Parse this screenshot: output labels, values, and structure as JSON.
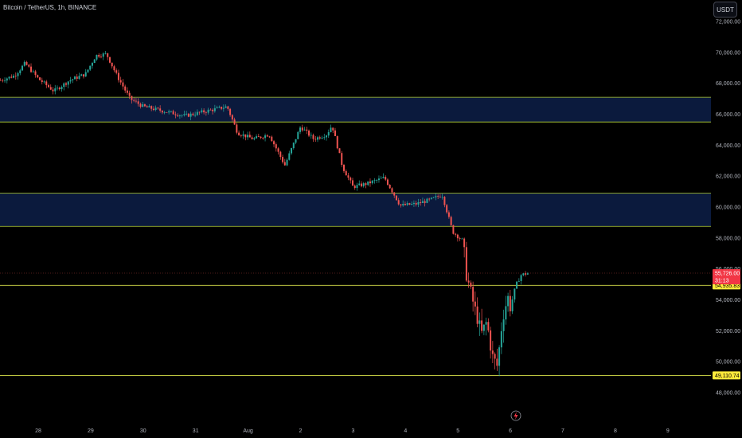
{
  "header": {
    "symbol_title": "Bitcoin / TetherUS, 1h, BINANCE",
    "currency": "USDT"
  },
  "colors": {
    "background": "#000000",
    "zone_fill": "#0b1a3d",
    "zone_border": "#b5d335",
    "level_line": "#d7e04a",
    "up": "#26a69a",
    "down": "#ef5350",
    "price_line": "#ef5350",
    "tag_yellow": "#ffeb3b",
    "tag_red": "#f23645"
  },
  "chart_data": {
    "type": "candlestick",
    "title": "Bitcoin / TetherUS, 1h, BINANCE",
    "ylim": [
      47500,
      73000
    ],
    "y_ticks": [
      48000,
      50000,
      52000,
      54000,
      56000,
      58000,
      60000,
      62000,
      64000,
      66000,
      68000,
      70000,
      72000
    ],
    "y_tick_labels": [
      "48,000.00",
      "50,000.00",
      "52,000.00",
      "54,000.00",
      "56,000.00",
      "58,000.00",
      "60,000.00",
      "62,000.00",
      "64,000.00",
      "66,000.00",
      "68,000.00",
      "70,000.00",
      "72,000.00"
    ],
    "x_ticks": [
      {
        "label": "28",
        "day": 0
      },
      {
        "label": "29",
        "day": 1
      },
      {
        "label": "30",
        "day": 2
      },
      {
        "label": "31",
        "day": 3
      },
      {
        "label": "Aug",
        "day": 4
      },
      {
        "label": "2",
        "day": 5
      },
      {
        "label": "3",
        "day": 6
      },
      {
        "label": "4",
        "day": 7
      },
      {
        "label": "5",
        "day": 8
      },
      {
        "label": "6",
        "day": 9
      },
      {
        "label": "7",
        "day": 10
      },
      {
        "label": "8",
        "day": 11
      },
      {
        "label": "9",
        "day": 12
      }
    ],
    "x_range_days": [
      -0.72,
      12.6
    ],
    "zones": [
      {
        "low": 65500,
        "high": 67100
      },
      {
        "low": 58750,
        "high": 60900
      }
    ],
    "levels": [
      {
        "value": 54935.83,
        "label": "54,935.83"
      },
      {
        "value": 49110.74,
        "label": "49,110.74"
      }
    ],
    "last_price": {
      "value": 55726.0,
      "label": "55,726.00",
      "countdown": "31:13"
    },
    "path_anchors": [
      [
        -0.72,
        68200
      ],
      [
        -0.45,
        68500
      ],
      [
        -0.25,
        69300
      ],
      [
        0.0,
        68300
      ],
      [
        0.3,
        67500
      ],
      [
        0.6,
        68200
      ],
      [
        0.9,
        68600
      ],
      [
        1.1,
        69800
      ],
      [
        1.3,
        69900
      ],
      [
        1.5,
        68500
      ],
      [
        1.75,
        67000
      ],
      [
        2.0,
        66500
      ],
      [
        2.4,
        66200
      ],
      [
        2.8,
        65900
      ],
      [
        3.2,
        66200
      ],
      [
        3.6,
        66500
      ],
      [
        3.8,
        64800
      ],
      [
        4.1,
        64400
      ],
      [
        4.4,
        64700
      ],
      [
        4.7,
        62700
      ],
      [
        5.0,
        65200
      ],
      [
        5.25,
        64400
      ],
      [
        5.5,
        64700
      ],
      [
        5.6,
        65300
      ],
      [
        5.8,
        62600
      ],
      [
        6.0,
        61300
      ],
      [
        6.25,
        61500
      ],
      [
        6.6,
        61900
      ],
      [
        6.9,
        60100
      ],
      [
        7.2,
        60200
      ],
      [
        7.5,
        60500
      ],
      [
        7.7,
        60800
      ],
      [
        7.9,
        58400
      ],
      [
        8.1,
        57800
      ],
      [
        8.15,
        55800
      ],
      [
        8.3,
        53700
      ],
      [
        8.45,
        51800
      ],
      [
        8.55,
        52600
      ],
      [
        8.65,
        50400
      ],
      [
        8.75,
        49700
      ],
      [
        8.85,
        52800
      ],
      [
        8.95,
        54200
      ],
      [
        9.0,
        53500
      ],
      [
        9.1,
        54900
      ],
      [
        9.2,
        55600
      ],
      [
        9.3,
        55700
      ],
      [
        9.35,
        55726
      ]
    ],
    "candle_step_days": 0.0417,
    "notes": "Hourly OHLC series approximated from the visible price path; grid off; last price 55,726.00"
  },
  "footer": {
    "replay_icon": "lightning-icon"
  }
}
